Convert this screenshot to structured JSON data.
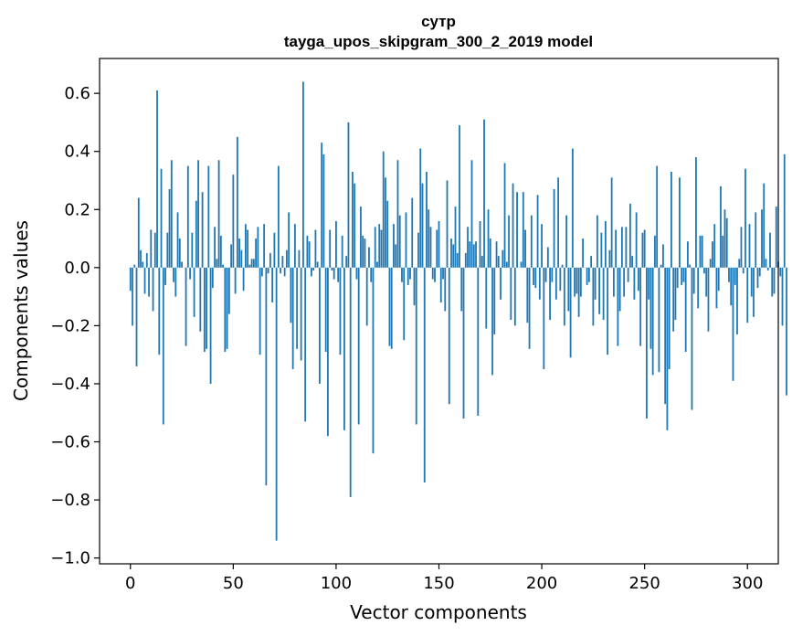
{
  "chart_data": {
    "type": "bar",
    "title": "сутр",
    "subtitle": "tayga_upos_skipgram_300_2_2019 model",
    "xlabel": "Vector components",
    "ylabel": "Components values",
    "xlim": [
      -15,
      315
    ],
    "ylim": [
      -1.02,
      0.72
    ],
    "xticks": [
      0,
      50,
      100,
      150,
      200,
      250,
      300
    ],
    "xtick_labels": [
      "0",
      "50",
      "100",
      "150",
      "200",
      "250",
      "300"
    ],
    "yticks": [
      0.6,
      0.4,
      0.2,
      0.0,
      -0.2,
      -0.4,
      -0.6,
      -0.8,
      -1.0
    ],
    "ytick_labels": [
      "0.6",
      "0.4",
      "0.2",
      "0.0",
      "−0.2",
      "−0.4",
      "−0.6",
      "−0.8",
      "−1.0"
    ],
    "bar_color": "#1f77b4",
    "values": [
      -0.08,
      -0.2,
      0.01,
      -0.34,
      0.24,
      0.06,
      0.02,
      -0.09,
      0.05,
      -0.1,
      0.13,
      -0.15,
      0.12,
      0.61,
      -0.3,
      0.34,
      -0.54,
      -0.06,
      0.12,
      0.27,
      0.37,
      -0.05,
      -0.1,
      0.19,
      0.1,
      0.02,
      0.0,
      -0.27,
      0.35,
      -0.04,
      0.12,
      -0.17,
      0.23,
      0.37,
      -0.22,
      0.26,
      -0.29,
      -0.28,
      0.35,
      -0.4,
      -0.07,
      0.14,
      0.03,
      0.37,
      0.11,
      0.01,
      -0.29,
      -0.28,
      -0.16,
      0.08,
      0.32,
      -0.09,
      0.45,
      0.1,
      0.06,
      -0.08,
      0.15,
      0.13,
      0.01,
      0.03,
      0.03,
      0.1,
      0.14,
      -0.3,
      -0.03,
      0.15,
      -0.75,
      -0.02,
      0.05,
      -0.12,
      0.12,
      -0.94,
      0.35,
      -0.02,
      0.04,
      -0.03,
      0.06,
      0.19,
      -0.19,
      -0.35,
      0.15,
      -0.28,
      0.06,
      -0.32,
      0.64,
      -0.53,
      0.11,
      0.09,
      -0.03,
      -0.01,
      0.13,
      0.02,
      -0.4,
      0.43,
      0.39,
      -0.29,
      -0.58,
      0.13,
      -0.01,
      -0.04,
      0.16,
      -0.05,
      -0.3,
      0.11,
      -0.56,
      0.04,
      0.5,
      -0.79,
      0.33,
      0.29,
      -0.04,
      -0.54,
      0.21,
      0.11,
      0.1,
      -0.2,
      0.07,
      -0.05,
      -0.64,
      0.14,
      0.02,
      0.15,
      0.13,
      0.4,
      0.31,
      0.23,
      -0.27,
      -0.28,
      0.15,
      0.08,
      0.37,
      0.18,
      -0.05,
      -0.25,
      0.19,
      -0.06,
      -0.04,
      0.24,
      -0.13,
      -0.54,
      0.12,
      0.41,
      0.29,
      -0.74,
      0.33,
      0.2,
      0.14,
      -0.04,
      -0.05,
      0.13,
      0.16,
      -0.12,
      -0.04,
      -0.15,
      0.3,
      -0.47,
      0.1,
      0.08,
      0.21,
      0.05,
      0.49,
      -0.15,
      -0.52,
      0.05,
      0.14,
      0.09,
      0.37,
      0.08,
      0.09,
      -0.51,
      0.16,
      0.04,
      0.51,
      -0.21,
      0.2,
      0.1,
      -0.37,
      -0.23,
      0.09,
      0.04,
      -0.11,
      0.06,
      0.36,
      0.02,
      0.18,
      -0.18,
      0.29,
      -0.2,
      0.26,
      0.0,
      0.02,
      0.26,
      0.13,
      -0.19,
      -0.28,
      0.18,
      -0.06,
      -0.07,
      0.25,
      -0.11,
      0.15,
      -0.35,
      -0.05,
      0.07,
      -0.18,
      -0.05,
      0.27,
      -0.11,
      0.31,
      -0.08,
      0.01,
      -0.2,
      0.18,
      -0.15,
      -0.31,
      0.41,
      -0.1,
      -0.09,
      -0.17,
      -0.1,
      0.1,
      0.0,
      -0.06,
      -0.05,
      0.04,
      -0.2,
      -0.11,
      0.18,
      -0.16,
      0.12,
      -0.18,
      0.16,
      -0.3,
      0.06,
      0.31,
      -0.1,
      0.13,
      -0.27,
      -0.15,
      0.14,
      -0.1,
      0.14,
      -0.05,
      0.22,
      0.04,
      -0.11,
      0.19,
      -0.08,
      -0.27,
      0.12,
      0.13,
      -0.52,
      -0.11,
      -0.28,
      -0.37,
      0.11,
      0.35,
      -0.36,
      0.01,
      0.08,
      -0.47,
      -0.56,
      -0.35,
      0.33,
      -0.22,
      -0.18,
      -0.07,
      0.31,
      -0.06,
      -0.05,
      -0.29,
      0.09,
      0.01,
      -0.49,
      -0.09,
      0.38,
      -0.14,
      0.11,
      0.11,
      -0.02,
      -0.1,
      -0.22,
      0.03,
      0.09,
      0.15,
      -0.14,
      -0.08,
      0.28,
      0.11,
      0.2,
      0.17,
      -0.05,
      -0.13,
      -0.39,
      -0.06,
      -0.23,
      0.03,
      0.14,
      -0.02,
      0.34,
      -0.19,
      0.15,
      -0.1,
      -0.17,
      0.19,
      -0.07,
      -0.03,
      0.2,
      0.29,
      0.03,
      -0.01,
      0.12,
      -0.1,
      -0.09,
      0.21,
      0.02,
      -0.03,
      -0.2,
      0.39,
      -0.44
    ]
  }
}
